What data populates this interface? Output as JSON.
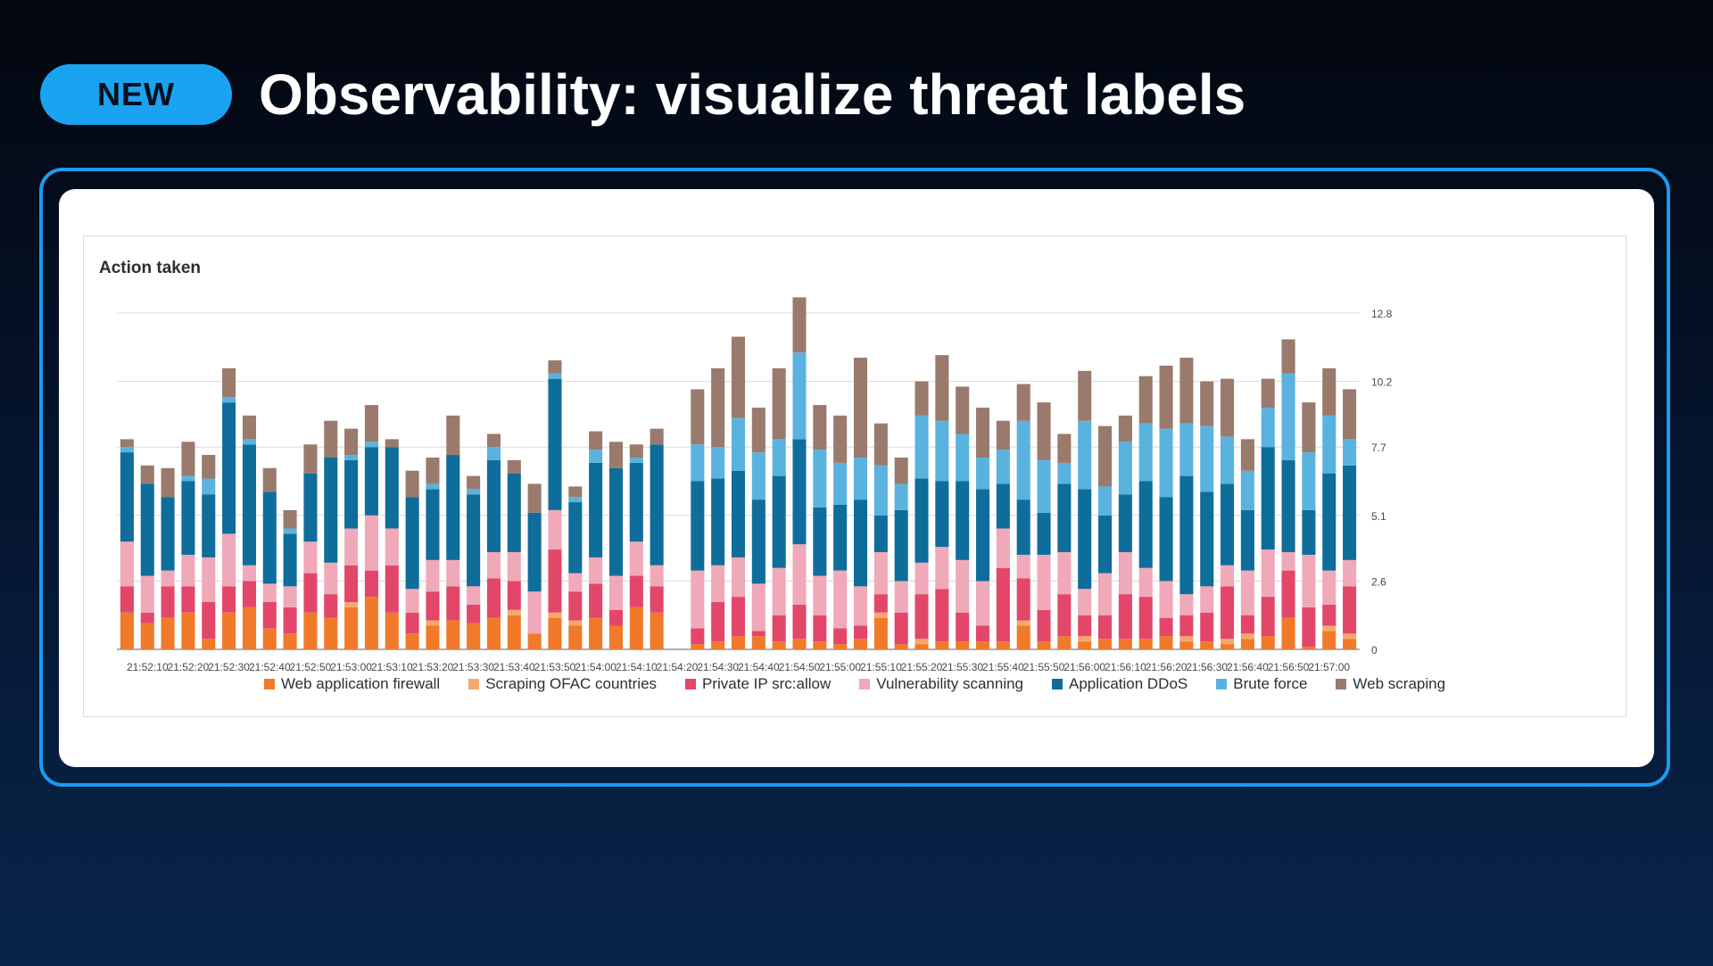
{
  "badge": {
    "label": "NEW"
  },
  "slide": {
    "title": "Observability: visualize threat labels"
  },
  "chart_data": {
    "type": "bar",
    "stacked": true,
    "title": "Action taken",
    "xlabel": "",
    "ylabel": "",
    "ylim": [
      0,
      12.8
    ],
    "y_ticks": [
      "0",
      "2.6",
      "5.1",
      "7.7",
      "10.2",
      "12.8"
    ],
    "y_axis_side": "right",
    "grid": true,
    "legend_position": "bottom",
    "x_tick_labels": [
      "21:52:10",
      "21:52:20",
      "21:52:30",
      "21:52:40",
      "21:52:50",
      "21:53:00",
      "21:53:10",
      "21:53:20",
      "21:53:30",
      "21:53:40",
      "21:53:50",
      "21:54:00",
      "21:54:10",
      "21:54:20",
      "21:54:30",
      "21:54:40",
      "21:54:50",
      "21:55:00",
      "21:55:10",
      "21:55:20",
      "21:55:30",
      "21:55:40",
      "21:55:50",
      "21:56:00",
      "21:56:10",
      "21:56:20",
      "21:56:30",
      "21:56:40",
      "21:56:50",
      "21:57:00"
    ],
    "series": [
      {
        "name": "Web application firewall",
        "color": "#f07a2a",
        "values": [
          1.4,
          1.0,
          1.2,
          1.4,
          0.4,
          1.4,
          1.6,
          0.8,
          0.6,
          1.4,
          1.2,
          1.6,
          2.0,
          1.4,
          0.6,
          0.9,
          1.1,
          1.0,
          1.2,
          1.3,
          0.6,
          1.2,
          0.9,
          1.2,
          0.9,
          1.6,
          1.4,
          0.0,
          0.2,
          0.3,
          0.5,
          0.5,
          0.3,
          0.4,
          0.3,
          0.2,
          0.4,
          1.2,
          0.2,
          0.2,
          0.3,
          0.3,
          0.3,
          0.3,
          0.9,
          0.3,
          0.5,
          0.3,
          0.4,
          0.4,
          0.4,
          0.5,
          0.3,
          0.3,
          0.2,
          0.4,
          0.5,
          1.2,
          0.1,
          0.7,
          0.4
        ]
      },
      {
        "name": "Scraping OFAC countries",
        "color": "#f5a86e",
        "values": [
          0,
          0,
          0,
          0,
          0,
          0,
          0,
          0,
          0,
          0,
          0,
          0.2,
          0,
          0,
          0,
          0.2,
          0,
          0,
          0,
          0.2,
          0,
          0.2,
          0.2,
          0,
          0,
          0,
          0,
          0,
          0,
          0,
          0,
          0,
          0,
          0,
          0,
          0,
          0,
          0.2,
          0,
          0.2,
          0,
          0,
          0,
          0,
          0.2,
          0,
          0,
          0.2,
          0,
          0,
          0,
          0,
          0.2,
          0,
          0.2,
          0.2,
          0,
          0,
          0,
          0.2,
          0.2
        ]
      },
      {
        "name": "Private IP src:allow",
        "color": "#e2476a",
        "values": [
          1.0,
          0.4,
          1.2,
          1.0,
          1.4,
          1.0,
          1.0,
          1.0,
          1.0,
          1.5,
          0.9,
          1.4,
          1.0,
          1.8,
          0.8,
          1.1,
          1.3,
          0.7,
          1.5,
          1.1,
          0.0,
          2.4,
          1.1,
          1.3,
          0.6,
          1.2,
          1.0,
          0,
          0.6,
          1.5,
          1.5,
          0.2,
          1.0,
          1.3,
          1.0,
          0.6,
          0.5,
          0.7,
          1.2,
          1.7,
          2.0,
          1.1,
          0.6,
          2.8,
          1.6,
          1.2,
          1.6,
          0.8,
          0.9,
          1.7,
          1.6,
          0.7,
          0.8,
          1.1,
          2.0,
          0.7,
          1.5,
          1.8,
          1.5,
          0.8,
          1.8
        ]
      },
      {
        "name": "Vulnerability scanning",
        "color": "#f0a9b8",
        "values": [
          1.7,
          1.4,
          0.6,
          1.2,
          1.7,
          2.0,
          0.6,
          0.7,
          0.8,
          1.2,
          1.2,
          1.4,
          2.1,
          1.4,
          0.9,
          1.2,
          1.0,
          0.7,
          1.0,
          1.1,
          1.6,
          1.5,
          0.7,
          1.0,
          1.3,
          1.3,
          0.8,
          0,
          2.2,
          1.4,
          1.5,
          1.8,
          1.8,
          2.3,
          1.5,
          2.2,
          1.5,
          1.6,
          1.2,
          1.2,
          1.6,
          2.0,
          1.7,
          1.5,
          0.9,
          2.1,
          1.6,
          1.0,
          1.6,
          1.6,
          1.1,
          1.4,
          0.8,
          1.0,
          0.8,
          1.7,
          1.8,
          0.7,
          2.0,
          1.3,
          1.0
        ]
      },
      {
        "name": "Application DDoS",
        "color": "#0f6d9b",
        "values": [
          3.4,
          3.5,
          2.8,
          2.8,
          2.4,
          5.0,
          4.6,
          3.5,
          2.0,
          2.6,
          4.0,
          2.6,
          2.6,
          3.1,
          3.5,
          2.7,
          4.0,
          3.5,
          3.5,
          3.0,
          3.0,
          5.0,
          2.7,
          3.6,
          4.1,
          3.0,
          4.6,
          0,
          3.4,
          3.3,
          3.3,
          3.2,
          3.5,
          4.0,
          2.6,
          2.5,
          3.3,
          1.4,
          2.7,
          3.2,
          2.5,
          3.0,
          3.5,
          1.7,
          2.1,
          1.6,
          2.6,
          3.8,
          2.2,
          2.2,
          3.3,
          3.2,
          4.5,
          3.6,
          3.1,
          2.3,
          3.9,
          3.5,
          1.7,
          3.7,
          3.6
        ]
      },
      {
        "name": "Brute force",
        "color": "#5ab3de",
        "values": [
          0.2,
          0.0,
          0.0,
          0.2,
          0.6,
          0.2,
          0.2,
          0.0,
          0.2,
          0.0,
          0.0,
          0.2,
          0.2,
          0.0,
          0.0,
          0.2,
          0.0,
          0.2,
          0.5,
          0.0,
          0.0,
          0.2,
          0.2,
          0.5,
          0.0,
          0.2,
          0.0,
          0,
          1.4,
          1.2,
          2.0,
          1.8,
          1.4,
          3.3,
          2.2,
          1.6,
          1.6,
          1.9,
          1.0,
          2.4,
          2.3,
          1.8,
          1.2,
          1.3,
          3.0,
          2.0,
          0.8,
          2.6,
          1.1,
          2.0,
          2.2,
          2.6,
          2.0,
          2.5,
          1.8,
          1.5,
          1.5,
          3.3,
          2.2,
          2.2,
          1.0
        ]
      },
      {
        "name": "Web scraping",
        "color": "#9a7a6c",
        "values": [
          0.3,
          0.7,
          1.1,
          1.3,
          0.9,
          1.1,
          0.9,
          0.9,
          0.7,
          1.1,
          1.4,
          1.0,
          1.4,
          0.3,
          1.0,
          1.0,
          1.5,
          0.5,
          0.5,
          0.5,
          1.1,
          0.5,
          0.4,
          0.7,
          1.0,
          0.5,
          0.6,
          0,
          2.1,
          3.0,
          3.1,
          1.7,
          2.7,
          2.1,
          1.7,
          1.8,
          3.8,
          1.6,
          1.0,
          1.3,
          2.5,
          1.8,
          1.9,
          1.1,
          1.4,
          2.2,
          1.1,
          1.9,
          2.3,
          1.0,
          1.8,
          2.4,
          2.5,
          1.7,
          2.2,
          1.2,
          1.1,
          1.3,
          1.9,
          1.8,
          1.9
        ]
      }
    ]
  }
}
